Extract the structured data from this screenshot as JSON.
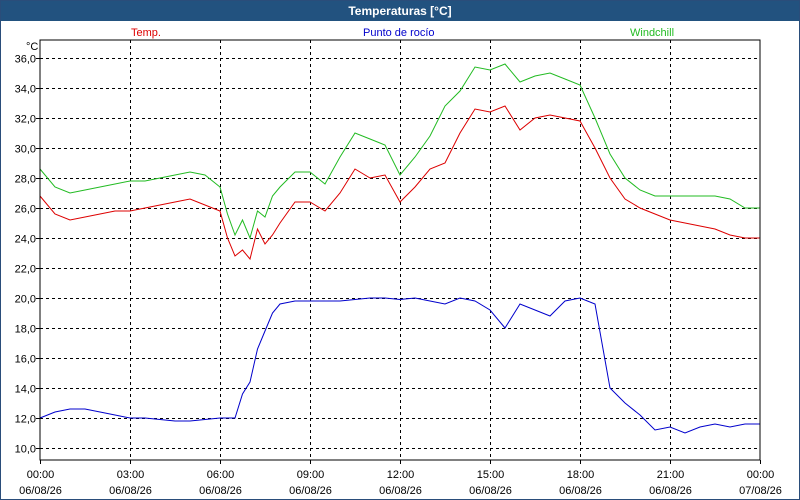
{
  "window": {
    "title": "Temperaturas [°C]"
  },
  "colors": {
    "titlebar": "#22527f",
    "temp": "#dd0000",
    "dew": "#0000cc",
    "windchill": "#22bb22",
    "grid": "#000000"
  },
  "chart_data": {
    "type": "line",
    "title": "Temperaturas [°C]",
    "ylabel": "°C",
    "ylim": [
      9.2,
      37.2
    ],
    "yticks": [
      "10,0",
      "12,0",
      "14,0",
      "16,0",
      "18,0",
      "20,0",
      "22,0",
      "24,0",
      "26,0",
      "28,0",
      "30,0",
      "32,0",
      "34,0",
      "36,0"
    ],
    "xticks": [
      {
        "time": "00:00",
        "date": "06/08/26"
      },
      {
        "time": "03:00",
        "date": "06/08/26"
      },
      {
        "time": "06:00",
        "date": "06/08/26"
      },
      {
        "time": "09:00",
        "date": "06/08/26"
      },
      {
        "time": "12:00",
        "date": "06/08/26"
      },
      {
        "time": "15:00",
        "date": "06/08/26"
      },
      {
        "time": "18:00",
        "date": "06/08/26"
      },
      {
        "time": "21:00",
        "date": "06/08/26"
      },
      {
        "time": "00:00",
        "date": "07/08/26"
      }
    ],
    "grid": true,
    "legend_position": "top",
    "x_hours": [
      0,
      0.5,
      1,
      1.5,
      2,
      2.5,
      3,
      3.5,
      4,
      4.5,
      5,
      5.5,
      6,
      6.25,
      6.5,
      6.75,
      7,
      7.25,
      7.5,
      7.75,
      8,
      8.5,
      9,
      9.5,
      10,
      10.5,
      11,
      11.5,
      12,
      12.5,
      13,
      13.5,
      14,
      14.5,
      15,
      15.5,
      16,
      16.5,
      17,
      17.5,
      18,
      18.5,
      19,
      19.5,
      20,
      20.5,
      21,
      21.5,
      22,
      22.5,
      23,
      23.5,
      24
    ],
    "series": [
      {
        "name": "Temp.",
        "color": "#dd0000",
        "values": [
          26.8,
          25.6,
          25.2,
          25.4,
          25.6,
          25.8,
          25.8,
          26.0,
          26.2,
          26.4,
          26.6,
          26.2,
          25.8,
          24.0,
          22.8,
          23.2,
          22.6,
          24.6,
          23.6,
          24.2,
          25.0,
          26.4,
          26.4,
          25.8,
          27.0,
          28.6,
          28.0,
          28.2,
          26.4,
          27.4,
          28.6,
          29.0,
          31.0,
          32.6,
          32.4,
          32.8,
          31.2,
          32.0,
          32.2,
          32.0,
          31.8,
          30.0,
          28.0,
          26.6,
          26.0,
          25.6,
          25.2,
          25.0,
          24.8,
          24.6,
          24.2,
          24.0,
          24.0
        ]
      },
      {
        "name": "Punto de rocío",
        "color": "#0000cc",
        "values": [
          12.0,
          12.4,
          12.6,
          12.6,
          12.4,
          12.2,
          12.0,
          12.0,
          11.9,
          11.8,
          11.8,
          11.9,
          12.0,
          12.0,
          12.0,
          13.6,
          14.4,
          16.6,
          17.8,
          19.0,
          19.6,
          19.8,
          19.8,
          19.8,
          19.8,
          19.9,
          20.0,
          20.0,
          19.9,
          20.0,
          19.8,
          19.6,
          20.0,
          19.8,
          19.2,
          18.0,
          19.6,
          19.2,
          18.8,
          19.8,
          20.0,
          19.6,
          14.0,
          13.0,
          12.2,
          11.2,
          11.4,
          11.0,
          11.4,
          11.6,
          11.4,
          11.6,
          11.6
        ]
      },
      {
        "name": "Windchill",
        "color": "#22bb22",
        "values": [
          28.6,
          27.4,
          27.0,
          27.2,
          27.4,
          27.6,
          27.8,
          27.8,
          28.0,
          28.2,
          28.4,
          28.2,
          27.4,
          25.6,
          24.2,
          25.2,
          24.0,
          25.8,
          25.4,
          26.8,
          27.4,
          28.4,
          28.4,
          27.6,
          29.4,
          31.0,
          30.6,
          30.2,
          28.2,
          29.4,
          30.8,
          32.8,
          33.8,
          35.4,
          35.2,
          35.6,
          34.4,
          34.8,
          35.0,
          34.6,
          34.2,
          32.0,
          29.6,
          28.0,
          27.2,
          26.8,
          26.8,
          26.8,
          26.8,
          26.8,
          26.6,
          26.0,
          26.0
        ]
      }
    ]
  }
}
